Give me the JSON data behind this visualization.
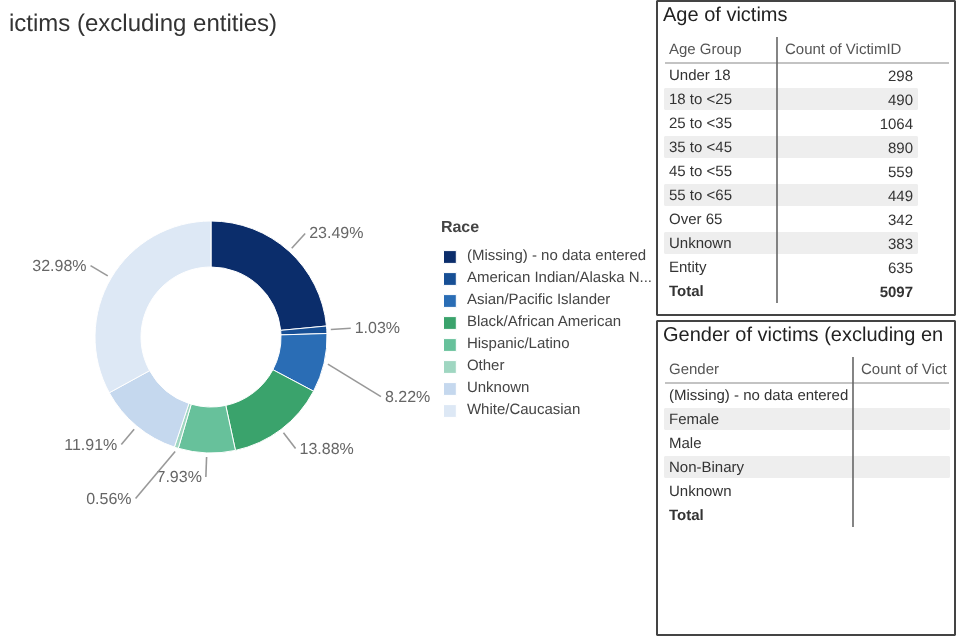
{
  "chart_data": [
    {
      "type": "donut",
      "title": "ictims (excluding entities)",
      "legend_title": "Race",
      "legend": "right",
      "categories": [
        "(Missing) - no data entered",
        "American Indian/Alaska N...",
        "Asian/Pacific Islander",
        "Black/African American",
        "Hispanic/Latino",
        "Other",
        "Unknown",
        "White/Caucasian"
      ],
      "values": [
        23.49,
        1.03,
        8.22,
        13.88,
        7.93,
        0.56,
        11.91,
        32.98
      ],
      "value_labels": [
        "23.49%",
        "1.03%",
        "8.22%",
        "13.88%",
        "7.93%",
        "0.56%",
        "11.91%",
        "32.98%"
      ],
      "colors": [
        "#0b2d6b",
        "#174f95",
        "#2a6db5",
        "#3aa36c",
        "#67c19b",
        "#9fd6c1",
        "#c5d8ee",
        "#dde8f5"
      ]
    },
    {
      "type": "other",
      "title": "Age of victims",
      "annotations": [
        "Age Group",
        "Count of VictimID"
      ],
      "categories": [
        "Under 18",
        "18 to <25",
        "25 to <35",
        "35 to <45",
        "45 to <55",
        "55 to <65",
        "Over 65",
        "Unknown",
        "Entity",
        "Total"
      ],
      "values": [
        298,
        490,
        1064,
        890,
        559,
        449,
        342,
        383,
        635,
        5097
      ],
      "value_labels": [
        "298",
        "490",
        "1064",
        "890",
        "559",
        "449",
        "342",
        "383",
        "635",
        "5097"
      ]
    },
    {
      "type": "other",
      "title": "Gender of victims (excluding en",
      "annotations": [
        "Gender",
        "Count of Vict"
      ],
      "categories": [
        "(Missing) - no data entered",
        "Female",
        "Male",
        "Non-Binary",
        "Unknown",
        "Total"
      ]
    }
  ]
}
